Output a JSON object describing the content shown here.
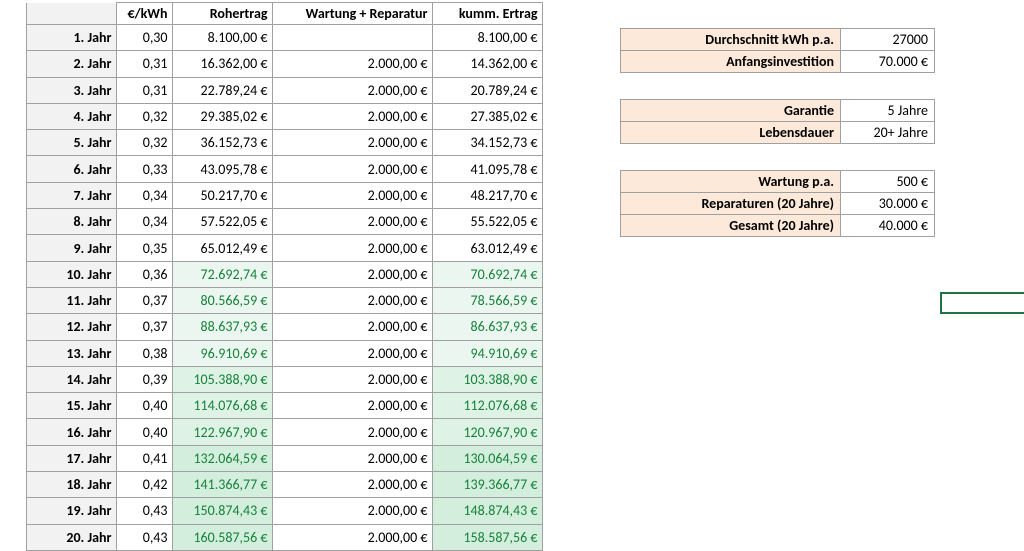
{
  "colors": {
    "row_header_bg": "#f2f2f2",
    "label_bg": "#fde9d9",
    "green_text": "#16823a",
    "green_bg1": "#eaf6ef",
    "green_bg2": "#dff2e6",
    "green_bg3": "#d4eedd",
    "selection_border": "#217346",
    "grid_border": "#a0a0a0"
  },
  "main": {
    "headers": {
      "ekwh": "€/kWh",
      "rohertrag": "Rohertrag",
      "wartung": "Wartung + Reparatur",
      "kumm": "kumm. Ertrag"
    },
    "rows": [
      {
        "year": "1. Jahr",
        "ekwh": "0,30",
        "roher": "8.100,00 €",
        "wart": "",
        "kumm": "8.100,00 €",
        "style": "plain"
      },
      {
        "year": "2. Jahr",
        "ekwh": "0,31",
        "roher": "16.362,00 €",
        "wart": "2.000,00 €",
        "kumm": "14.362,00 €",
        "style": "plain"
      },
      {
        "year": "3. Jahr",
        "ekwh": "0,31",
        "roher": "22.789,24 €",
        "wart": "2.000,00 €",
        "kumm": "20.789,24 €",
        "style": "plain"
      },
      {
        "year": "4. Jahr",
        "ekwh": "0,32",
        "roher": "29.385,02 €",
        "wart": "2.000,00 €",
        "kumm": "27.385,02 €",
        "style": "plain"
      },
      {
        "year": "5. Jahr",
        "ekwh": "0,32",
        "roher": "36.152,73 €",
        "wart": "2.000,00 €",
        "kumm": "34.152,73 €",
        "style": "plain"
      },
      {
        "year": "6. Jahr",
        "ekwh": "0,33",
        "roher": "43.095,78 €",
        "wart": "2.000,00 €",
        "kumm": "41.095,78 €",
        "style": "plain"
      },
      {
        "year": "7. Jahr",
        "ekwh": "0,34",
        "roher": "50.217,70 €",
        "wart": "2.000,00 €",
        "kumm": "48.217,70 €",
        "style": "plain"
      },
      {
        "year": "8. Jahr",
        "ekwh": "0,34",
        "roher": "57.522,05 €",
        "wart": "2.000,00 €",
        "kumm": "55.522,05 €",
        "style": "plain"
      },
      {
        "year": "9. Jahr",
        "ekwh": "0,35",
        "roher": "65.012,49 €",
        "wart": "2.000,00 €",
        "kumm": "63.012,49 €",
        "style": "plain"
      },
      {
        "year": "10. Jahr",
        "ekwh": "0,36",
        "roher": "72.692,74 €",
        "wart": "2.000,00 €",
        "kumm": "70.692,74 €",
        "style": "g1"
      },
      {
        "year": "11. Jahr",
        "ekwh": "0,37",
        "roher": "80.566,59 €",
        "wart": "2.000,00 €",
        "kumm": "78.566,59 €",
        "style": "g1"
      },
      {
        "year": "12. Jahr",
        "ekwh": "0,37",
        "roher": "88.637,93 €",
        "wart": "2.000,00 €",
        "kumm": "86.637,93 €",
        "style": "g1"
      },
      {
        "year": "13. Jahr",
        "ekwh": "0,38",
        "roher": "96.910,69 €",
        "wart": "2.000,00 €",
        "kumm": "94.910,69 €",
        "style": "g1"
      },
      {
        "year": "14. Jahr",
        "ekwh": "0,39",
        "roher": "105.388,90 €",
        "wart": "2.000,00 €",
        "kumm": "103.388,90 €",
        "style": "g2"
      },
      {
        "year": "15. Jahr",
        "ekwh": "0,40",
        "roher": "114.076,68 €",
        "wart": "2.000,00 €",
        "kumm": "112.076,68 €",
        "style": "g2"
      },
      {
        "year": "16. Jahr",
        "ekwh": "0,40",
        "roher": "122.967,90 €",
        "wart": "2.000,00 €",
        "kumm": "120.967,90 €",
        "style": "g2"
      },
      {
        "year": "17. Jahr",
        "ekwh": "0,41",
        "roher": "132.064,59 €",
        "wart": "2.000,00 €",
        "kumm": "130.064,59 €",
        "style": "g3"
      },
      {
        "year": "18. Jahr",
        "ekwh": "0,42",
        "roher": "141.366,77 €",
        "wart": "2.000,00 €",
        "kumm": "139.366,77 €",
        "style": "g3"
      },
      {
        "year": "19. Jahr",
        "ekwh": "0,43",
        "roher": "150.874,43 €",
        "wart": "2.000,00 €",
        "kumm": "148.874,43 €",
        "style": "g3"
      },
      {
        "year": "20. Jahr",
        "ekwh": "0,43",
        "roher": "160.587,56 €",
        "wart": "2.000,00 €",
        "kumm": "158.587,56 €",
        "style": "g3"
      }
    ]
  },
  "side": {
    "block1": [
      {
        "label": "Durchschnitt kWh p.a.",
        "value": "27000"
      },
      {
        "label": "Anfangsinvestition",
        "value": "70.000 €"
      }
    ],
    "block2": [
      {
        "label": "Garantie",
        "value": "5 Jahre"
      },
      {
        "label": "Lebensdauer",
        "value": "20+ Jahre"
      }
    ],
    "block3": [
      {
        "label": "Wartung p.a.",
        "value": "500 €"
      },
      {
        "label": "Reparaturen (20 Jahre)",
        "value": "30.000 €"
      },
      {
        "label": "Gesamt (20 Jahre)",
        "value": "40.000 €"
      }
    ]
  }
}
